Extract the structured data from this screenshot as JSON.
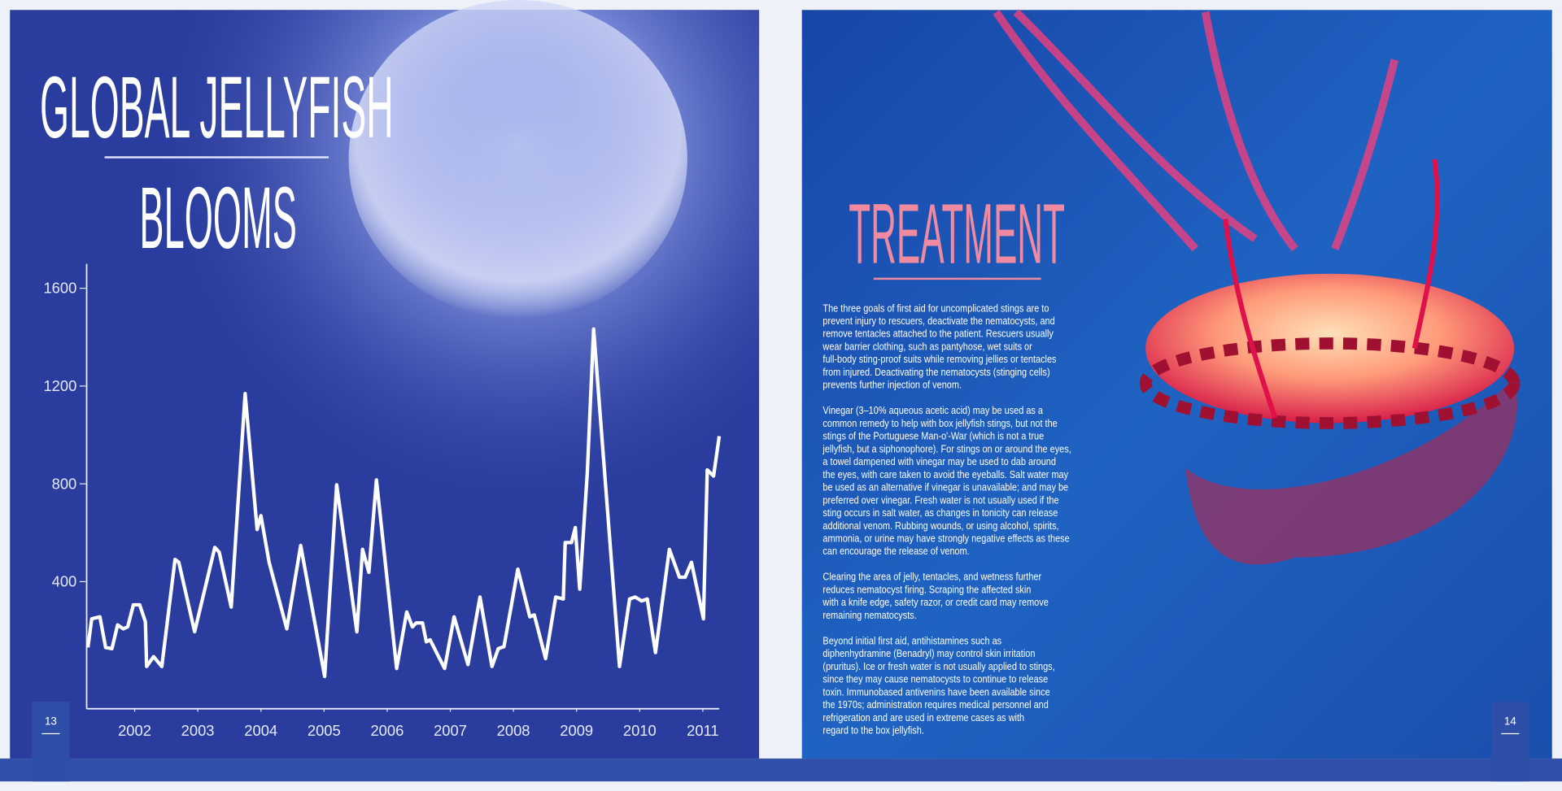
{
  "left_page": {
    "title_line1": "GLOBAL JELLYFISH",
    "title_line2": "BLOOMS",
    "page_number": "13"
  },
  "right_page": {
    "heading": "TREATMENT",
    "paragraphs": [
      [
        "The three goals of first aid for uncomplicated stings are to",
        "prevent injury to rescuers, deactivate the nematocysts, and",
        "remove tentacles attached to the patient. Rescuers usually",
        "wear barrier clothing, such as pantyhose, wet suits or",
        "full-body sting-proof suits while removing jellies or tentacles",
        "from injured. Deactivating the nematocysts (stinging cells)",
        "prevents further injection of venom."
      ],
      [
        "Vinegar (3–10% aqueous acetic acid) may be used as a",
        "common remedy to help with box jellyfish stings, but not the",
        "stings of the Portuguese Man-o'-War (which is not a true",
        "jellyfish, but a siphonophore). For stings on or around the eyes,",
        "a towel dampened with vinegar may be used to dab around",
        "the eyes, with care taken to avoid the eyeballs. Salt water may",
        "be used as an alternative if vinegar is unavailable; and may be",
        "preferred over vinegar. Fresh water is not usually used if the",
        "sting occurs in salt water, as changes in tonicity can release",
        "additional venom. Rubbing wounds, or using alcohol, spirits,",
        "ammonia, or urine may have strongly negative effects as these",
        "can encourage the release of venom."
      ],
      [
        "Clearing the area of jelly, tentacles, and wetness further",
        "reduces nematocyst firing. Scraping the affected skin",
        "with a knife edge, safety razor, or credit card may remove",
        "remaining nematocysts."
      ],
      [
        "Beyond initial first aid, antihistamines such as",
        "diphenhydramine (Benadryl) may control skin irritation",
        "(pruritus). Ice or fresh water is not usually applied to stings,",
        "since they may cause nematocysts to continue to release",
        "toxin. Immunobased antivenins have been available since",
        "the 1970s; administration requires medical personnel and",
        "refrigeration and are used in extreme cases as with",
        "regard to the box jellyfish."
      ]
    ],
    "page_number": "14"
  },
  "chart_data": {
    "type": "line",
    "x": [
      2001.26,
      2001.32,
      2001.45,
      2001.54,
      2001.64,
      2001.73,
      2001.82,
      2001.89,
      2001.98,
      2002.08,
      2002.17,
      2002.19,
      2002.3,
      2002.43,
      2002.64,
      2002.7,
      2002.95,
      2003.27,
      2003.34,
      2003.53,
      2003.75,
      2003.94,
      2004.0,
      2004.13,
      2004.41,
      2004.63,
      2005.01,
      2005.2,
      2005.52,
      2005.61,
      2005.71,
      2005.83,
      2006.15,
      2006.31,
      2006.4,
      2006.46,
      2006.56,
      2006.62,
      2006.68,
      2006.91,
      2007.06,
      2007.28,
      2007.47,
      2007.66,
      2007.76,
      2007.85,
      2008.07,
      2008.26,
      2008.33,
      2008.51,
      2008.67,
      2008.79,
      2008.82,
      2008.92,
      2008.98,
      2009.05,
      2009.17,
      2009.27,
      2009.68,
      2009.84,
      2009.93,
      2010.03,
      2010.12,
      2010.25,
      2010.47,
      2010.63,
      2010.72,
      2010.82,
      2011.01,
      2011.07,
      2011.17,
      2011.26
    ],
    "values": [
      131,
      248,
      256,
      131,
      126,
      223,
      207,
      215,
      305,
      305,
      236,
      53,
      93,
      53,
      491,
      479,
      195,
      540,
      520,
      296,
      1169,
      613,
      670,
      479,
      207,
      548,
      12,
      796,
      195,
      532,
      438,
      816,
      45,
      276,
      215,
      231,
      231,
      154,
      162,
      45,
      256,
      61,
      337,
      53,
      126,
      134,
      451,
      256,
      264,
      85,
      337,
      329,
      560,
      560,
      621,
      369,
      845,
      1433,
      53,
      329,
      337,
      321,
      329,
      110,
      532,
      418,
      418,
      479,
      248,
      857,
      832,
      995
    ],
    "color": "#ffffff",
    "xlim": [
      2001.24,
      2011.26
    ],
    "xticks": [
      2002,
      2003,
      2004,
      2005,
      2006,
      2007,
      2008,
      2009,
      2010,
      2011
    ],
    "ylim": [
      -120,
      1700
    ],
    "yticks": [
      400,
      800,
      1200,
      1600
    ]
  }
}
